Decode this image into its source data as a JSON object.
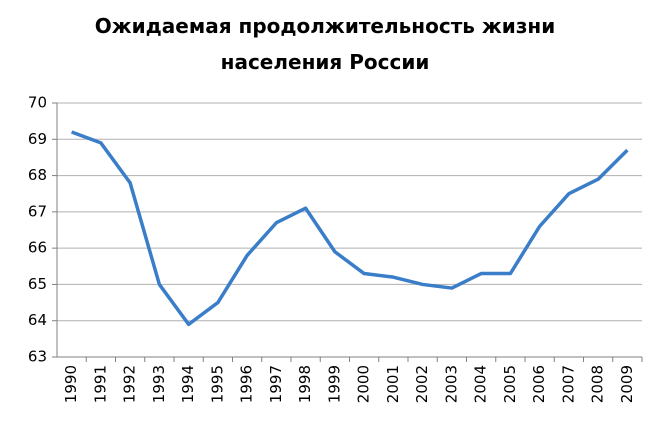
{
  "chart_data": {
    "type": "line",
    "title": "Ожидаемая продолжительность жизни населения России",
    "categories": [
      "1990",
      "1991",
      "1992",
      "1993",
      "1994",
      "1995",
      "1996",
      "1997",
      "1998",
      "1999",
      "2000",
      "2001",
      "2002",
      "2003",
      "2004",
      "2005",
      "2006",
      "2007",
      "2008",
      "2009"
    ],
    "values": [
      69.2,
      68.9,
      67.8,
      65.0,
      63.9,
      64.5,
      65.8,
      66.7,
      67.1,
      65.9,
      65.3,
      65.2,
      65.0,
      64.9,
      65.3,
      65.3,
      66.6,
      67.5,
      67.9,
      68.7
    ],
    "color": "#3a7dc9",
    "ylim": [
      63,
      70
    ],
    "yticks": [
      63,
      64,
      65,
      66,
      67,
      68,
      69,
      70
    ],
    "grid": true
  }
}
